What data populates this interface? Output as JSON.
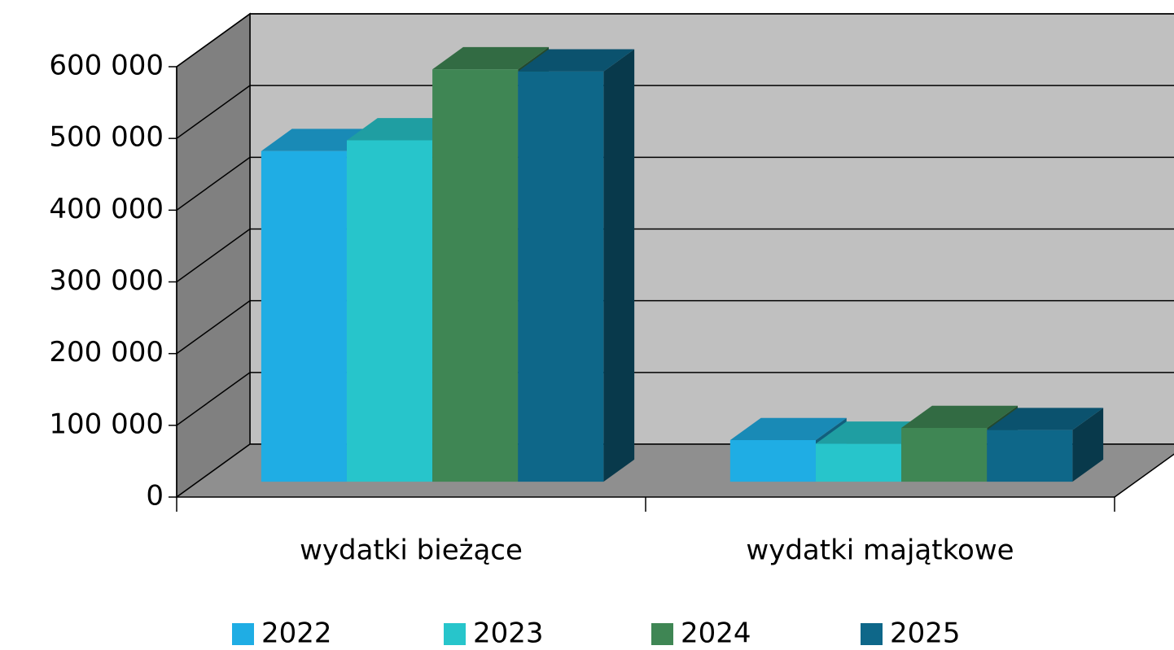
{
  "chart_data": {
    "type": "bar3d",
    "categories": [
      "wydatki bieżące",
      "wydatki majątkowe"
    ],
    "series": [
      {
        "name": "2022",
        "color": "#1fade4",
        "values": [
          461000,
          58000
        ]
      },
      {
        "name": "2023",
        "color": "#27c5cb",
        "values": [
          476000,
          53000
        ]
      },
      {
        "name": "2024",
        "color": "#3f8654",
        "values": [
          575000,
          75000
        ]
      },
      {
        "name": "2025",
        "color": "#0e6789",
        "values": [
          572000,
          72000
        ]
      }
    ],
    "ylim": [
      0,
      600000
    ],
    "yticks": [
      {
        "value": 0,
        "label": "0"
      },
      {
        "value": 100000,
        "label": "100 000"
      },
      {
        "value": 200000,
        "label": "200 000"
      },
      {
        "value": 300000,
        "label": "300 000"
      },
      {
        "value": 400000,
        "label": "400 000"
      },
      {
        "value": 500000,
        "label": "500 000"
      },
      {
        "value": 600000,
        "label": "600 000"
      }
    ],
    "grid": true,
    "legend": "bottom"
  }
}
